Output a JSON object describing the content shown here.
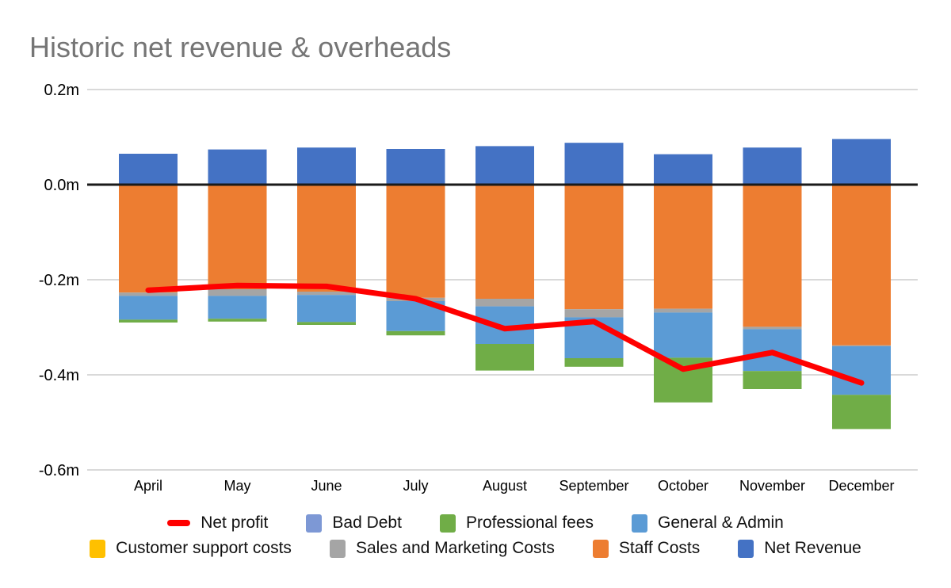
{
  "page": {
    "title": "Historic net revenue & overheads",
    "title_color": "#757575",
    "background": "#ffffff"
  },
  "chart_data": {
    "type": "bar",
    "subtype": "stacked-bar-with-line-overlay",
    "title": "Historic net revenue & overheads",
    "xlabel": "",
    "ylabel": "",
    "unit": "millions",
    "ylim": [
      -0.6,
      0.2
    ],
    "grid": true,
    "gridline_color": "#d9d9d9",
    "zero_line_color": "#1a1a1a",
    "axis_text_color": "#000000",
    "categories": [
      "April",
      "May",
      "June",
      "July",
      "August",
      "September",
      "October",
      "November",
      "December"
    ],
    "yticks": [
      {
        "value": 0.2,
        "label": "0.2m"
      },
      {
        "value": 0.0,
        "label": "0.0m"
      },
      {
        "value": -0.2,
        "label": "-0.2m"
      },
      {
        "value": -0.4,
        "label": "-0.4m"
      },
      {
        "value": -0.6,
        "label": "-0.6m"
      }
    ],
    "bar_series": [
      {
        "name": "Net Revenue",
        "color": "#4472C4",
        "values": [
          0.065,
          0.074,
          0.078,
          0.075,
          0.081,
          0.088,
          0.064,
          0.078,
          0.096
        ]
      },
      {
        "name": "Staff Costs",
        "color": "#ED7D31",
        "values": [
          -0.227,
          -0.22,
          -0.225,
          -0.238,
          -0.24,
          -0.262,
          -0.261,
          -0.299,
          -0.338
        ]
      },
      {
        "name": "Sales and Marketing Costs",
        "color": "#A5A5A5",
        "values": [
          -0.007,
          -0.014,
          -0.007,
          -0.007,
          -0.016,
          -0.017,
          -0.008,
          -0.005,
          -0.002
        ]
      },
      {
        "name": "Customer support costs",
        "color": "#FFC000",
        "values": [
          0,
          0,
          0,
          0,
          0,
          0,
          0,
          0,
          0
        ]
      },
      {
        "name": "General & Admin",
        "color": "#5B9BD5",
        "values": [
          -0.05,
          -0.048,
          -0.057,
          -0.063,
          -0.079,
          -0.086,
          -0.095,
          -0.088,
          -0.102
        ]
      },
      {
        "name": "Professional fees",
        "color": "#70AD47",
        "values": [
          -0.006,
          -0.006,
          -0.006,
          -0.009,
          -0.056,
          -0.018,
          -0.094,
          -0.038,
          -0.072
        ]
      },
      {
        "name": "Bad Debt",
        "color": "#7D98D5",
        "values": [
          0,
          0,
          0,
          0,
          0,
          0,
          0,
          0,
          0
        ]
      }
    ],
    "line_series": {
      "name": "Net profit",
      "color": "#FF0000",
      "stroke_width": 7,
      "values": [
        -0.222,
        -0.212,
        -0.214,
        -0.24,
        -0.303,
        -0.288,
        -0.388,
        -0.353,
        -0.417
      ]
    },
    "legend_position": "bottom",
    "legend_rows": [
      [
        {
          "label": "Net profit",
          "swatch": "line",
          "color": "#FF0000"
        },
        {
          "label": "Bad Debt",
          "swatch": "square",
          "color": "#7D98D5"
        },
        {
          "label": "Professional fees",
          "swatch": "square",
          "color": "#70AD47"
        },
        {
          "label": "General & Admin",
          "swatch": "square",
          "color": "#5B9BD5"
        }
      ],
      [
        {
          "label": "Customer support costs",
          "swatch": "square",
          "color": "#FFC000"
        },
        {
          "label": "Sales and Marketing Costs",
          "swatch": "square",
          "color": "#A5A5A5"
        },
        {
          "label": "Staff Costs",
          "swatch": "square",
          "color": "#ED7D31"
        },
        {
          "label": "Net Revenue",
          "swatch": "square",
          "color": "#4472C4"
        }
      ]
    ]
  }
}
